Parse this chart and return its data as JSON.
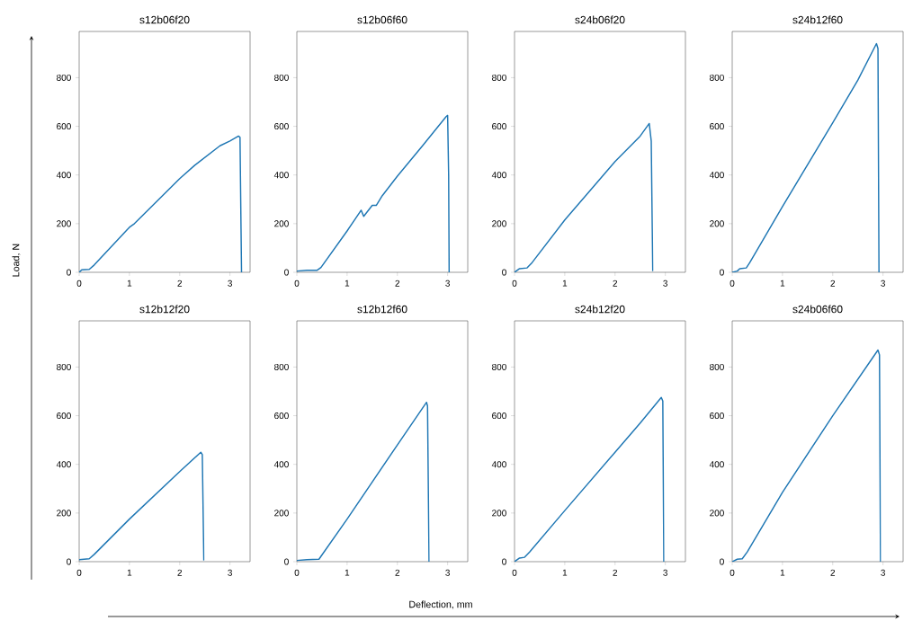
{
  "chart_data": [
    {
      "type": "line",
      "title": "s12b06f20",
      "ylabel": "Load, N",
      "color": "#1f77b4",
      "xlim": [
        0,
        3.4
      ],
      "ylim": [
        0,
        990
      ],
      "xticks": [
        0,
        1,
        2,
        3
      ],
      "yticks": [
        0,
        200,
        400,
        600,
        800
      ],
      "x": [
        0,
        0.05,
        0.2,
        0.3,
        1,
        1.1,
        2,
        2.3,
        2.8,
        3.0,
        3.17,
        3.2,
        3.23
      ],
      "values": [
        0,
        10,
        12,
        30,
        185,
        200,
        385,
        440,
        520,
        540,
        560,
        555,
        0
      ]
    },
    {
      "type": "line",
      "title": "s12b06f60",
      "color": "#1f77b4",
      "xlim": [
        0,
        3.4
      ],
      "ylim": [
        0,
        990
      ],
      "xticks": [
        0,
        1,
        2,
        3
      ],
      "yticks": [
        0,
        200,
        400,
        600,
        800
      ],
      "x": [
        0,
        0.2,
        0.4,
        0.48,
        1.0,
        1.28,
        1.33,
        1.5,
        1.58,
        1.7,
        2.0,
        2.5,
        2.97,
        3.0,
        3.02,
        3.03
      ],
      "values": [
        5,
        8,
        8,
        20,
        170,
        255,
        230,
        275,
        275,
        315,
        395,
        520,
        640,
        645,
        400,
        0
      ]
    },
    {
      "type": "line",
      "title": "s24b06f20",
      "color": "#1f77b4",
      "xlim": [
        0,
        3.4
      ],
      "ylim": [
        0,
        990
      ],
      "xticks": [
        0,
        1,
        2,
        3
      ],
      "yticks": [
        0,
        200,
        400,
        600,
        800
      ],
      "x": [
        0,
        0.1,
        0.25,
        0.35,
        1,
        2,
        2.5,
        2.68,
        2.72,
        2.75
      ],
      "values": [
        0,
        15,
        18,
        40,
        215,
        455,
        560,
        612,
        540,
        5
      ]
    },
    {
      "type": "line",
      "title": "s24b12f60",
      "color": "#1f77b4",
      "xlim": [
        0,
        3.4
      ],
      "ylim": [
        0,
        990
      ],
      "xticks": [
        0,
        1,
        2,
        3
      ],
      "yticks": [
        0,
        200,
        400,
        600,
        800
      ],
      "x": [
        0,
        0.1,
        0.15,
        0.28,
        0.35,
        1,
        2,
        2.5,
        2.87,
        2.9,
        2.92
      ],
      "values": [
        0,
        5,
        15,
        18,
        40,
        270,
        615,
        790,
        940,
        920,
        0
      ]
    },
    {
      "type": "line",
      "title": "s12b12f20",
      "color": "#1f77b4",
      "xlim": [
        0,
        3.4
      ],
      "ylim": [
        0,
        990
      ],
      "xticks": [
        0,
        1,
        2,
        3
      ],
      "yticks": [
        0,
        200,
        400,
        600,
        800
      ],
      "x": [
        0,
        0.2,
        0.3,
        1,
        2,
        2.42,
        2.45,
        2.48
      ],
      "values": [
        8,
        12,
        30,
        175,
        370,
        450,
        440,
        5
      ]
    },
    {
      "type": "line",
      "title": "s12b12f60",
      "xlabel": "Deflection, mm",
      "color": "#1f77b4",
      "xlim": [
        0,
        3.4
      ],
      "ylim": [
        0,
        990
      ],
      "xticks": [
        0,
        1,
        2,
        3
      ],
      "yticks": [
        0,
        200,
        400,
        600,
        800
      ],
      "x": [
        0,
        0.2,
        0.44,
        1,
        2,
        2.58,
        2.6,
        2.63
      ],
      "values": [
        5,
        8,
        10,
        175,
        480,
        655,
        640,
        0
      ]
    },
    {
      "type": "line",
      "title": "s24b12f20",
      "color": "#1f77b4",
      "xlim": [
        0,
        3.4
      ],
      "ylim": [
        0,
        990
      ],
      "xticks": [
        0,
        1,
        2,
        3
      ],
      "yticks": [
        0,
        200,
        400,
        600,
        800
      ],
      "x": [
        0,
        0.1,
        0.2,
        0.3,
        1,
        2,
        2.5,
        2.92,
        2.95,
        2.97
      ],
      "values": [
        0,
        15,
        18,
        40,
        210,
        450,
        570,
        675,
        660,
        0
      ]
    },
    {
      "type": "line",
      "title": "s24b06f60",
      "color": "#1f77b4",
      "xlim": [
        0,
        3.4
      ],
      "ylim": [
        0,
        990
      ],
      "xticks": [
        0,
        1,
        2,
        3
      ],
      "yticks": [
        0,
        200,
        400,
        600,
        800
      ],
      "x": [
        0,
        0.1,
        0.2,
        0.3,
        1,
        2,
        2.9,
        2.93,
        2.95
      ],
      "values": [
        0,
        10,
        12,
        40,
        285,
        600,
        870,
        850,
        0
      ]
    }
  ]
}
